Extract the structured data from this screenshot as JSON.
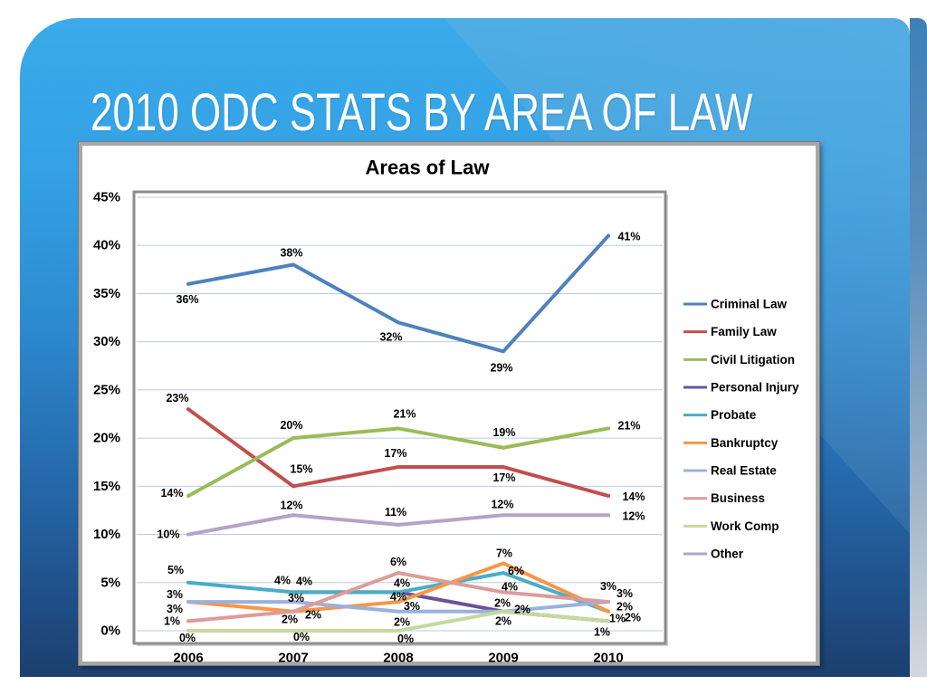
{
  "slide": {
    "title": "2010 ODC STATS BY AREA OF LAW"
  },
  "theme": {
    "background_top": "#3aaaea",
    "background_bottom": "#1c3f6e",
    "title_text": "#ffffff",
    "gridline": "#bccae6"
  },
  "chart_data": {
    "type": "line",
    "title": "Areas of Law",
    "categories": [
      "2006",
      "2007",
      "2008",
      "2009",
      "2010"
    ],
    "ylim": [
      0,
      45
    ],
    "y_ticks": [
      0,
      5,
      10,
      15,
      20,
      25,
      30,
      35,
      40,
      45
    ],
    "y_tick_labels": [
      "0%",
      "5%",
      "10%",
      "15%",
      "20%",
      "25%",
      "30%",
      "35%",
      "40%",
      "45%"
    ],
    "grid": "horizontal",
    "legend": "right",
    "data_labels": true,
    "series": [
      {
        "name": "Criminal Law",
        "color": "#4f81bd",
        "values": [
          36,
          38,
          32,
          29,
          41
        ],
        "labels": [
          "36%",
          "38%",
          "32%",
          "29%",
          "41%"
        ]
      },
      {
        "name": "Family Law",
        "color": "#c0504d",
        "values": [
          23,
          15,
          17,
          17,
          14
        ],
        "labels": [
          "23%",
          "15%",
          "17%",
          "17%",
          "14%"
        ]
      },
      {
        "name": "Civil Litigation",
        "color": "#9bbb59",
        "values": [
          14,
          20,
          21,
          19,
          21
        ],
        "labels": [
          "14%",
          "20%",
          "21%",
          "19%",
          "21%"
        ]
      },
      {
        "name": "Personal Injury",
        "color": "#6a519a",
        "values": [
          null,
          4,
          4,
          2,
          1
        ],
        "labels": [
          null,
          "4%",
          "4%",
          "2%",
          "1%"
        ]
      },
      {
        "name": "Probate",
        "color": "#4bacc6",
        "values": [
          5,
          4,
          4,
          6,
          2
        ],
        "labels": [
          "5%",
          "4%",
          "4%",
          "6%",
          "2%"
        ]
      },
      {
        "name": "Bankruptcy",
        "color": "#f79646",
        "values": [
          3,
          2,
          3,
          7,
          2
        ],
        "labels": [
          "3%",
          "2%",
          "3%",
          "7%",
          "2%"
        ]
      },
      {
        "name": "Real Estate",
        "color": "#9bb1dd",
        "values": [
          3,
          3,
          2,
          2,
          3
        ],
        "labels": [
          "3%",
          "3%",
          "2%",
          "2%",
          "3%"
        ]
      },
      {
        "name": "Business",
        "color": "#dc9c9a",
        "values": [
          1,
          2,
          6,
          4,
          3
        ],
        "labels": [
          "1%",
          "2%",
          "6%",
          "4%",
          "3%"
        ]
      },
      {
        "name": "Work Comp",
        "color": "#c4da9d",
        "values": [
          0,
          0,
          0,
          2,
          1
        ],
        "labels": [
          "0%",
          "0%",
          "0%",
          "2%",
          "1%"
        ]
      },
      {
        "name": "Other",
        "color": "#b3a3c9",
        "values": [
          10,
          12,
          11,
          12,
          12
        ],
        "labels": [
          "10%",
          "12%",
          "11%",
          "12%",
          "12%"
        ]
      }
    ]
  }
}
